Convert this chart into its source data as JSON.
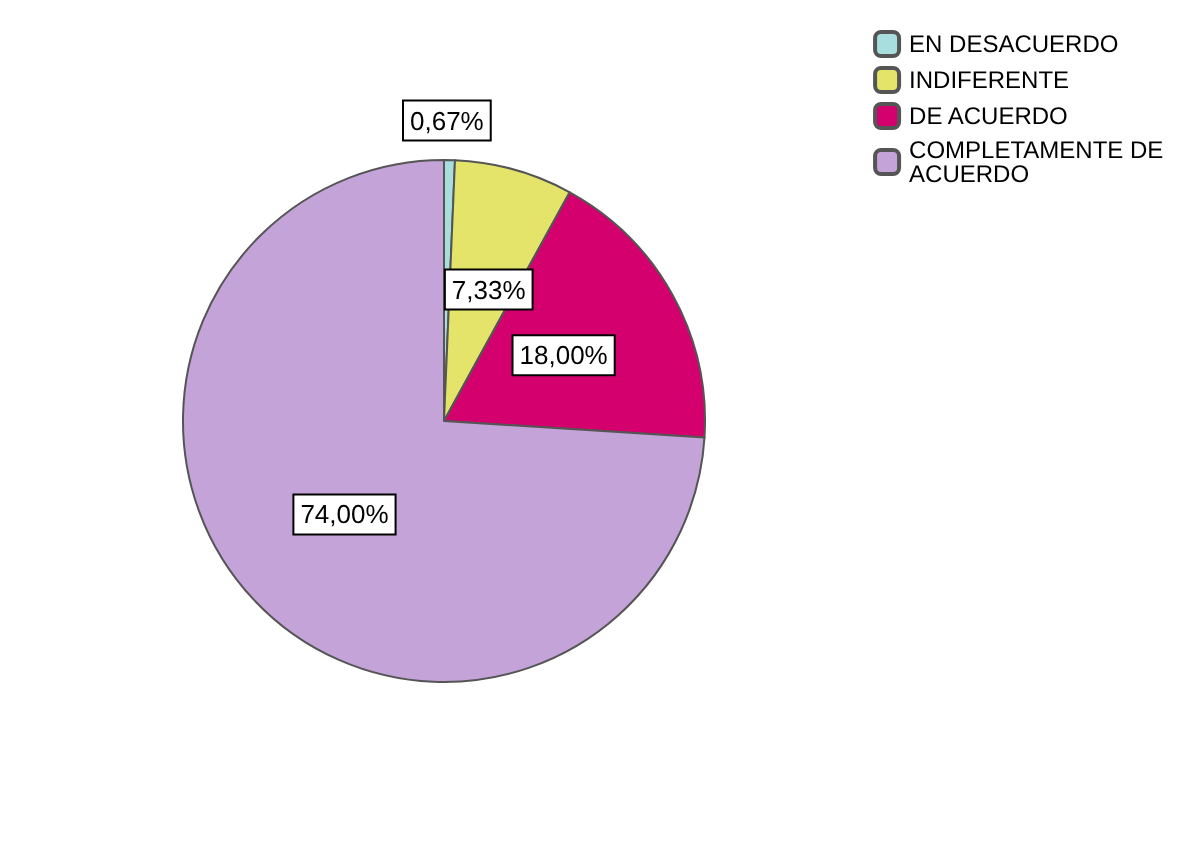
{
  "chart_data": {
    "type": "pie",
    "categories": [
      "EN DESACUERDO",
      "INDIFERENTE",
      "DE ACUERDO",
      "COMPLETAMENTE DE ACUERDO"
    ],
    "values": [
      0.67,
      7.33,
      18,
      74
    ],
    "colors": [
      "#a8dede",
      "#e4e46a",
      "#d4006e",
      "#c4a4d8"
    ],
    "value_labels": [
      "0,67%",
      "7,33%",
      "18,00%",
      "74,00%"
    ],
    "legend": "top right"
  }
}
